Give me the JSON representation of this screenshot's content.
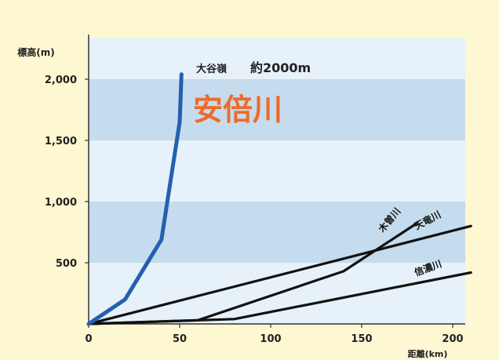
{
  "chart_data": {
    "type": "line",
    "ylabel": "標高(m)",
    "xlabel": "距離(km)",
    "xlim": [
      0,
      210
    ],
    "ylim": [
      0,
      2200
    ],
    "xticks": [
      "0",
      "50",
      "100",
      "150",
      "200"
    ],
    "xtick_values": [
      0,
      50,
      100,
      150,
      200
    ],
    "yticks": [
      "500",
      "1,000",
      "1,500",
      "2,000"
    ],
    "ytick_values": [
      500,
      1000,
      1500,
      2000
    ],
    "bands": [
      {
        "from": 500,
        "to": 1000,
        "color": "#c4dced"
      },
      {
        "from": 1500,
        "to": 2000,
        "color": "#c4dced"
      }
    ],
    "plot_background": "#e6f1f9",
    "annotation_peak": "大谷嶺",
    "annotation_height": "約2000m",
    "highlight_label": "安倍川",
    "highlight_color": "#ef6a2a",
    "series": [
      {
        "name": "安倍川",
        "color": "#2460b0",
        "x": [
          0,
          20,
          40,
          50,
          51
        ],
        "y": [
          0,
          200,
          690,
          1650,
          2040
        ]
      },
      {
        "name": "木曽川",
        "color": "#111111",
        "x": [
          0,
          60,
          140,
          180
        ],
        "y": [
          0,
          30,
          430,
          820
        ]
      },
      {
        "name": "天竜川",
        "color": "#111111",
        "x": [
          0,
          210
        ],
        "y": [
          0,
          800
        ]
      },
      {
        "name": "信濃川",
        "color": "#111111",
        "x": [
          0,
          80,
          210
        ],
        "y": [
          0,
          40,
          420
        ]
      }
    ]
  }
}
